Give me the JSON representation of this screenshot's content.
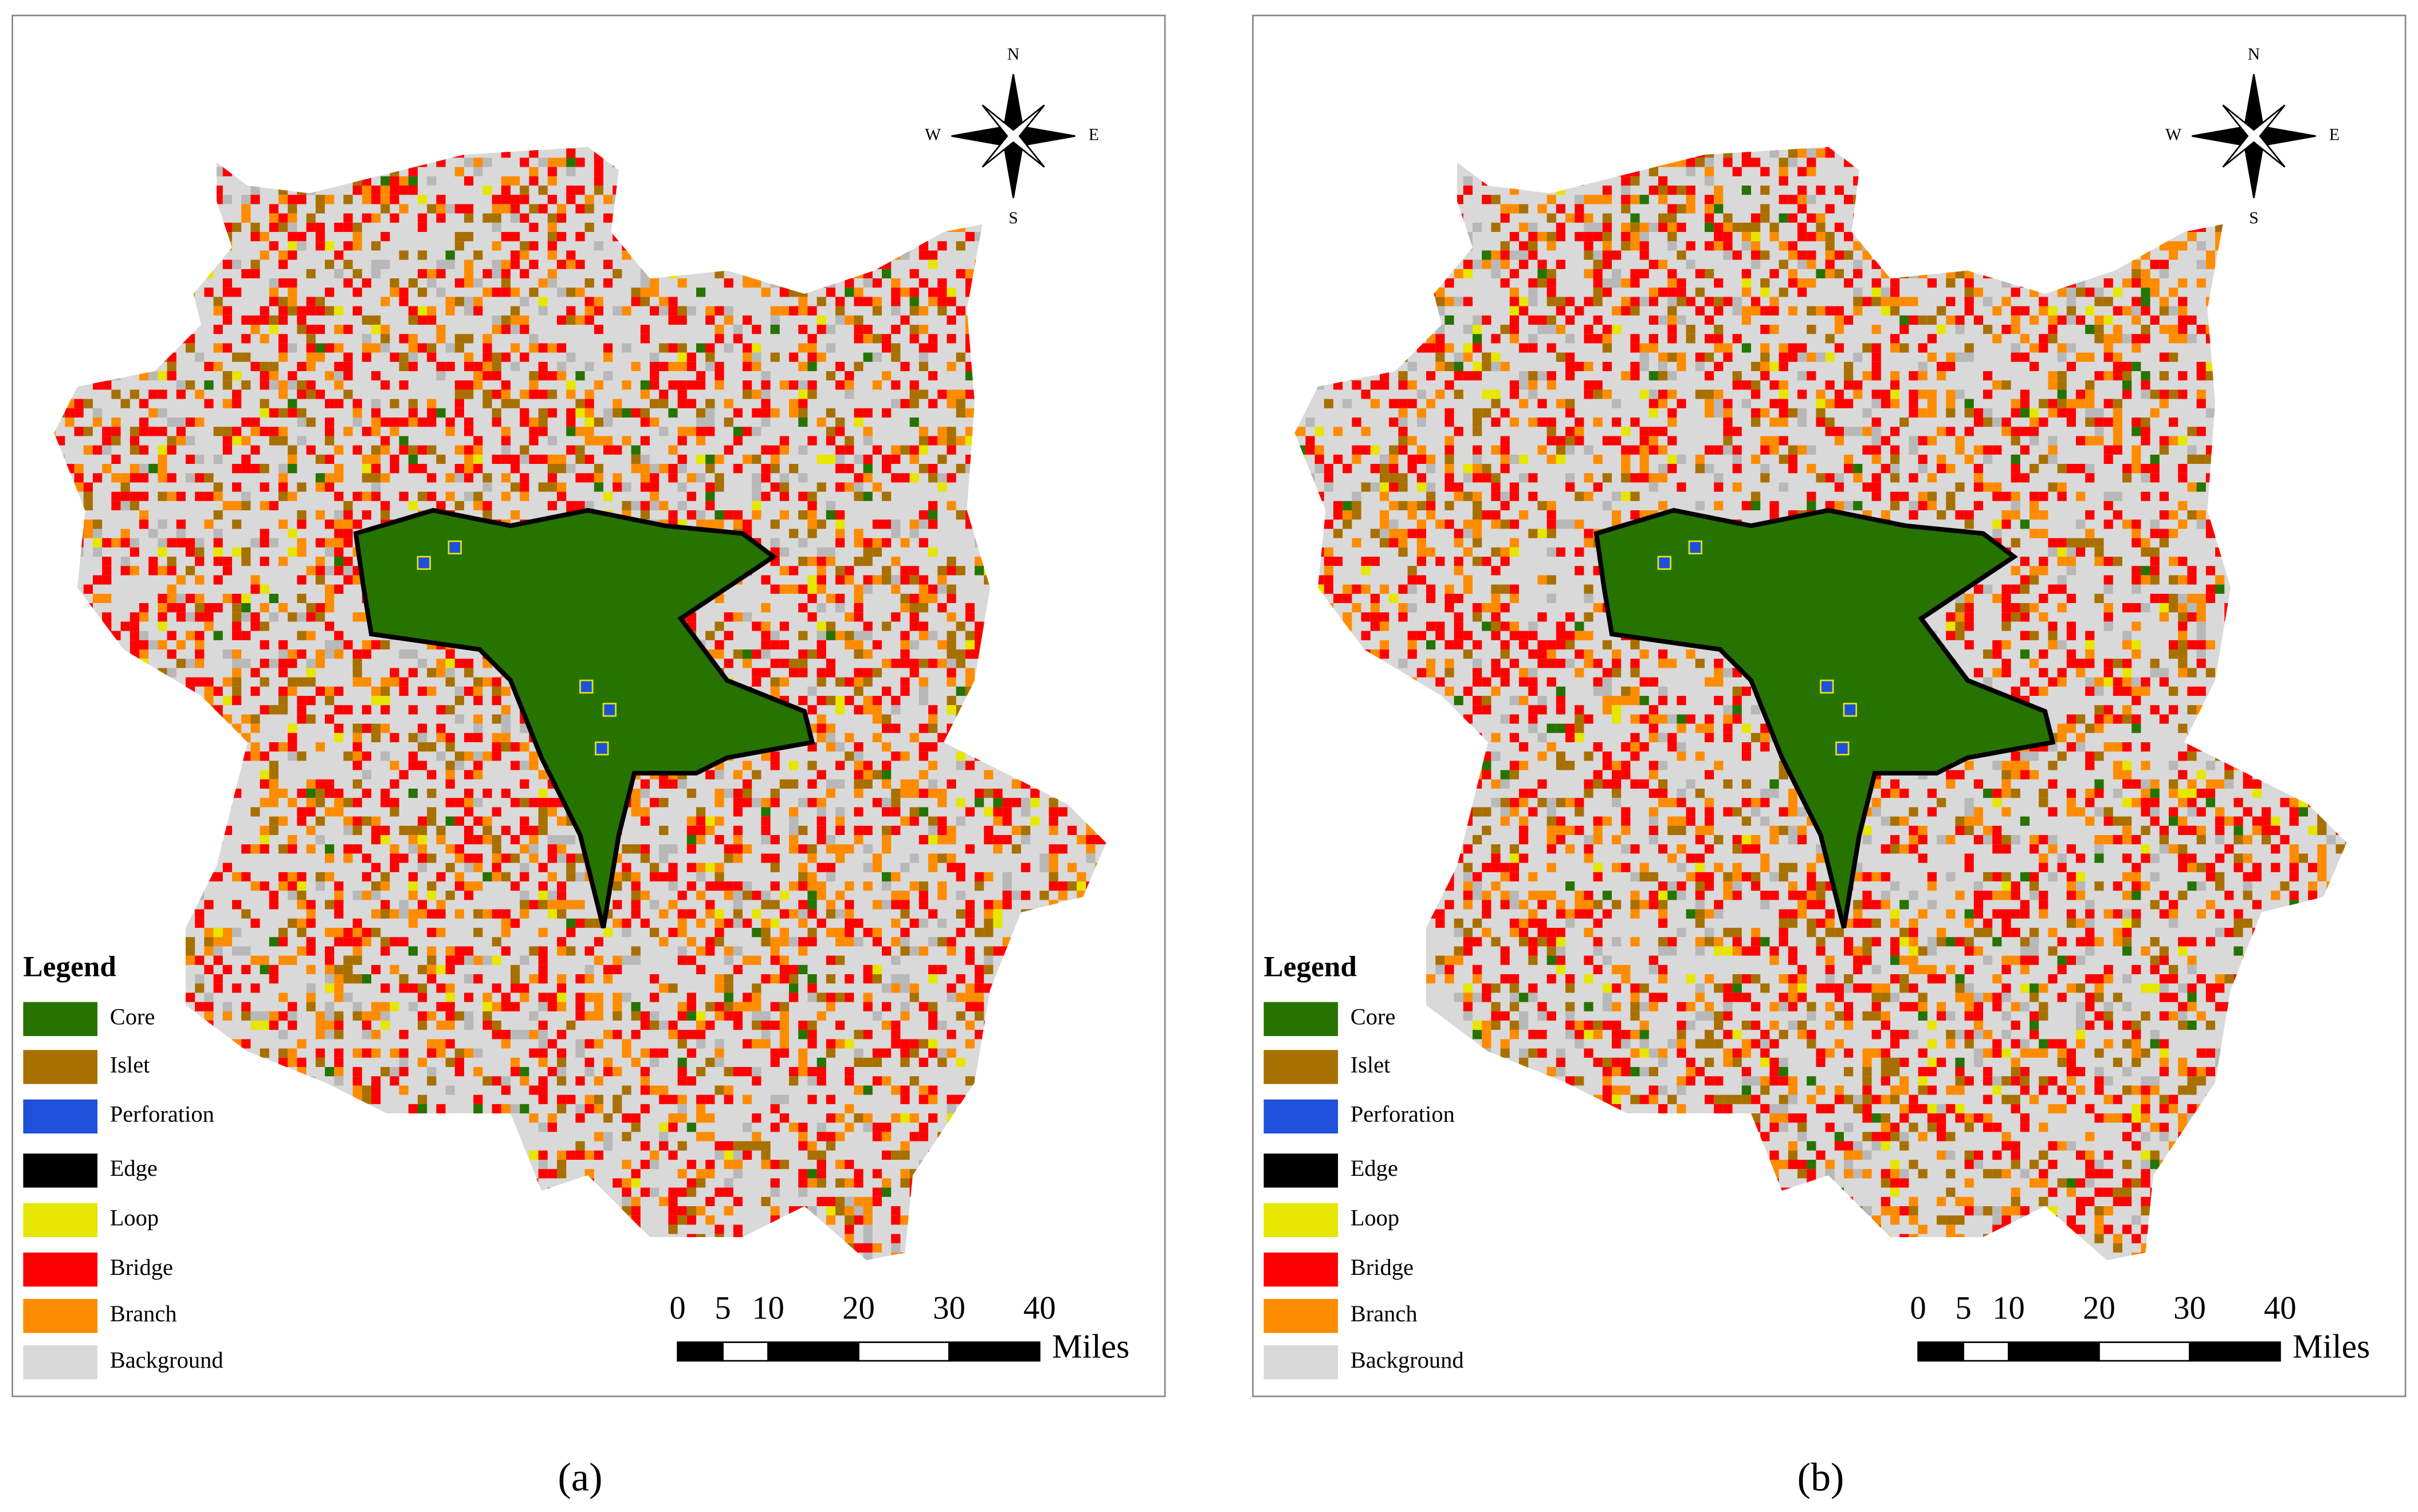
{
  "panels": [
    {
      "caption": "(a)",
      "legend": {
        "title": "Legend",
        "items": [
          {
            "label": "Core",
            "color": "#267300"
          },
          {
            "label": "Islet",
            "color": "#a87000"
          },
          {
            "label": "Perforation",
            "color": "#1e50dc"
          },
          {
            "label": "Edge",
            "color": "#000000"
          },
          {
            "label": "Loop",
            "color": "#e6e600"
          },
          {
            "label": "Bridge",
            "color": "#ff0000"
          },
          {
            "label": "Branch",
            "color": "#ff8c00"
          },
          {
            "label": "Background",
            "color": "#d9d9d9"
          }
        ]
      },
      "scale_bar": {
        "ticks": [
          0,
          5,
          10,
          20,
          30,
          40
        ],
        "unit": "Miles"
      },
      "compass": {
        "n": "N",
        "e": "E",
        "s": "S",
        "w": "W"
      }
    },
    {
      "caption": "(b)",
      "legend": {
        "title": "Legend",
        "items": [
          {
            "label": "Core",
            "color": "#267300"
          },
          {
            "label": "Islet",
            "color": "#a87000"
          },
          {
            "label": "Perforation",
            "color": "#1e50dc"
          },
          {
            "label": "Edge",
            "color": "#000000"
          },
          {
            "label": "Loop",
            "color": "#e6e600"
          },
          {
            "label": "Bridge",
            "color": "#ff0000"
          },
          {
            "label": "Branch",
            "color": "#ff8c00"
          },
          {
            "label": "Background",
            "color": "#d9d9d9"
          }
        ]
      },
      "scale_bar": {
        "ticks": [
          0,
          5,
          10,
          20,
          30,
          40
        ],
        "unit": "Miles"
      },
      "compass": {
        "n": "N",
        "e": "E",
        "s": "S",
        "w": "W"
      }
    }
  ]
}
